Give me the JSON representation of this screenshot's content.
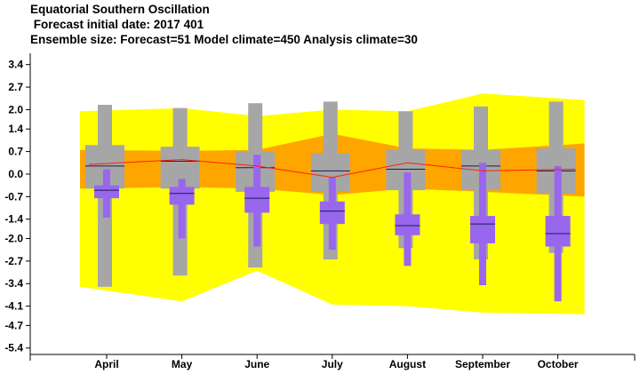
{
  "header": {
    "title": "Equatorial Southern Oscillation",
    "subtitle": " Forecast initial date: 2017 401",
    "ensemble": "Ensemble size: Forecast=51 Model climate=450 Analysis climate=30"
  },
  "chart_data": {
    "type": "box",
    "title": "Equatorial Southern Oscillation",
    "categories": [
      "April",
      "May",
      "June",
      "July",
      "August",
      "September",
      "October"
    ],
    "ylim": [
      -5.6,
      3.75
    ],
    "yticks": [
      "3.4",
      "2.7",
      "2.0",
      "1.4",
      "0.7",
      "0.0",
      "-0.7",
      "-1.4",
      "-2.0",
      "-2.7",
      "-3.4",
      "-4.1",
      "-4.7",
      "-5.4"
    ],
    "ytick_values": [
      3.4,
      2.7,
      2.0,
      1.4,
      0.7,
      0.0,
      -0.7,
      -1.4,
      -2.0,
      -2.7,
      -3.4,
      -4.1,
      -4.7,
      -5.4
    ],
    "grid": false,
    "colors": {
      "outer_band": "#ffff00",
      "inner_band": "#ffa500",
      "model_climate": "#a6a6a6",
      "forecast": "#9966ee",
      "median_line": "#1a1a55",
      "mean_line": "#ff2200"
    },
    "outer_band": {
      "upper": [
        1.95,
        2.05,
        1.8,
        2.0,
        1.95,
        2.5,
        2.3
      ],
      "lower": [
        -3.5,
        -3.95,
        -3.0,
        -4.05,
        -4.1,
        -4.3,
        -4.35
      ]
    },
    "inner_band": {
      "upper": [
        0.75,
        0.72,
        0.75,
        1.25,
        0.8,
        0.75,
        0.95
      ],
      "lower": [
        -0.45,
        -0.4,
        -0.45,
        -0.65,
        -0.45,
        -0.55,
        -0.7
      ]
    },
    "mean_line": [
      0.3,
      0.45,
      0.25,
      -0.1,
      0.35,
      0.1,
      0.15
    ],
    "model_climate": [
      {
        "min": -3.5,
        "p10": -0.45,
        "p25": -0.4,
        "median": 0.25,
        "p75": 0.7,
        "p90": 0.9,
        "max": 2.15
      },
      {
        "min": -3.15,
        "p10": -0.45,
        "p25": -0.4,
        "median": 0.4,
        "p75": 0.65,
        "p90": 0.85,
        "max": 2.05
      },
      {
        "min": -2.9,
        "p10": -0.55,
        "p25": -0.5,
        "median": 0.2,
        "p75": 0.6,
        "p90": 0.7,
        "max": 2.2
      },
      {
        "min": -2.65,
        "p10": -0.55,
        "p25": -0.5,
        "median": 0.1,
        "p75": 0.55,
        "p90": 0.65,
        "max": 2.25
      },
      {
        "min": -2.3,
        "p10": -0.5,
        "p25": -0.45,
        "median": 0.15,
        "p75": 0.6,
        "p90": 0.75,
        "max": 1.95
      },
      {
        "min": -2.65,
        "p10": -0.5,
        "p25": -0.45,
        "median": 0.25,
        "p75": 0.6,
        "p90": 0.75,
        "max": 2.1
      },
      {
        "min": -2.45,
        "p10": -0.6,
        "p25": -0.55,
        "median": 0.1,
        "p75": 0.6,
        "p90": 0.8,
        "max": 2.25
      }
    ],
    "forecast": [
      {
        "min": -1.35,
        "p10": -0.75,
        "p25": -0.7,
        "median": -0.5,
        "p75": -0.4,
        "p90": -0.35,
        "max": 0.15
      },
      {
        "min": -2.0,
        "p10": -0.95,
        "p25": -0.9,
        "median": -0.6,
        "p75": -0.45,
        "p90": -0.4,
        "max": -0.15
      },
      {
        "min": -2.25,
        "p10": -1.2,
        "p25": -1.15,
        "median": -0.75,
        "p75": -0.5,
        "p90": -0.4,
        "max": 0.6
      },
      {
        "min": -2.35,
        "p10": -1.55,
        "p25": -1.5,
        "median": -1.15,
        "p75": -0.95,
        "p90": -0.85,
        "max": -0.1
      },
      {
        "min": -2.85,
        "p10": -1.9,
        "p25": -1.85,
        "median": -1.6,
        "p75": -1.3,
        "p90": -1.25,
        "max": 0.05
      },
      {
        "min": -3.45,
        "p10": -2.15,
        "p25": -2.1,
        "median": -1.55,
        "p75": -1.35,
        "p90": -1.3,
        "max": 0.35
      },
      {
        "min": -3.95,
        "p10": -2.25,
        "p25": -2.2,
        "median": -1.85,
        "p75": -1.35,
        "p90": -1.3,
        "max": 0.25
      }
    ]
  }
}
